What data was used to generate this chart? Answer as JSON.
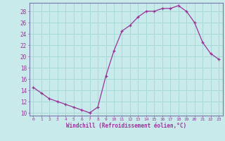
{
  "x": [
    0,
    1,
    2,
    3,
    4,
    5,
    6,
    7,
    8,
    9,
    10,
    11,
    12,
    13,
    14,
    15,
    16,
    17,
    18,
    19,
    20,
    21,
    22,
    23
  ],
  "y": [
    14.5,
    13.5,
    12.5,
    12.0,
    11.5,
    11.0,
    10.5,
    10.0,
    11.0,
    16.5,
    21.0,
    24.5,
    25.5,
    27.0,
    28.0,
    28.0,
    28.5,
    28.5,
    29.0,
    28.0,
    26.0,
    22.5,
    20.5,
    19.5
  ],
  "line_color": "#993399",
  "marker": "+",
  "background_color": "#c8eaea",
  "grid_color": "#aad8d8",
  "xlabel": "Windchill (Refroidissement éolien,°C)",
  "yticks": [
    10,
    12,
    14,
    16,
    18,
    20,
    22,
    24,
    26,
    28
  ],
  "ylim": [
    9.5,
    29.5
  ],
  "xlim": [
    -0.5,
    23.5
  ],
  "xticks": [
    0,
    1,
    2,
    3,
    4,
    5,
    6,
    7,
    8,
    9,
    10,
    11,
    12,
    13,
    14,
    15,
    16,
    17,
    18,
    19,
    20,
    21,
    22,
    23
  ],
  "spine_color": "#7777aa",
  "tick_color": "#993399",
  "label_color": "#993399",
  "marker_size": 3,
  "line_width": 0.9
}
